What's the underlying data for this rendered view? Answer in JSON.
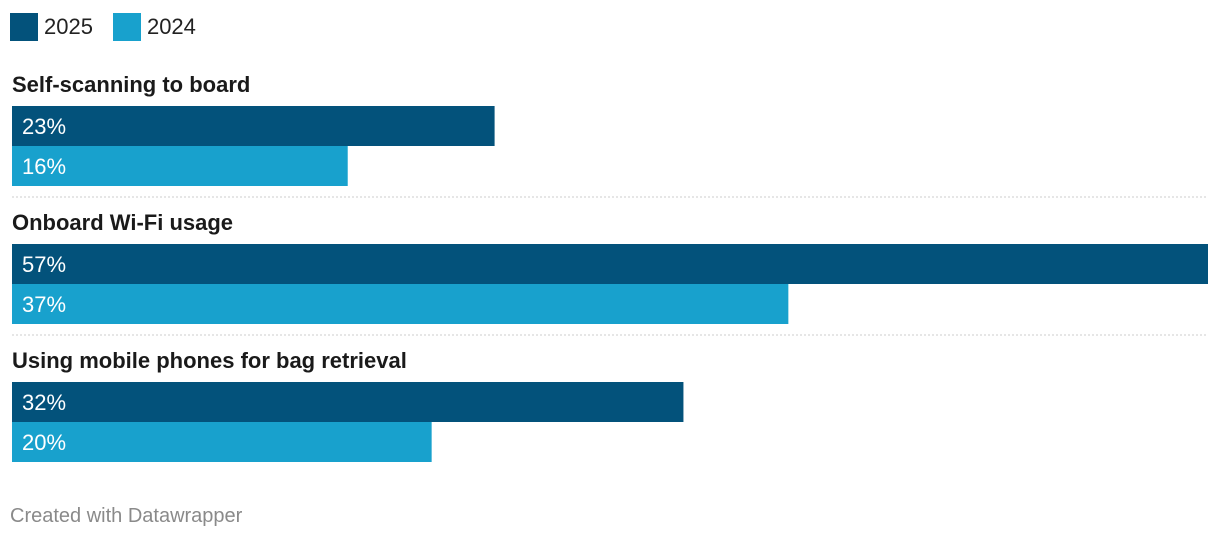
{
  "chart_data": {
    "type": "bar",
    "orientation": "horizontal",
    "categories": [
      "Self-scanning to board",
      "Onboard Wi-Fi usage",
      "Using mobile phones for bag retrieval"
    ],
    "series": [
      {
        "name": "2025",
        "values": [
          23,
          57,
          32
        ],
        "labels": [
          "23%",
          "57%",
          "32%"
        ],
        "color": "#03527b"
      },
      {
        "name": "2024",
        "values": [
          16,
          37,
          20
        ],
        "labels": [
          "16%",
          "37%",
          "20%"
        ],
        "color": "#18a1cd"
      }
    ],
    "xlim": [
      0,
      57
    ],
    "legend_position": "top-left",
    "grid": false
  },
  "footer": {
    "credit": "Created with Datawrapper"
  }
}
